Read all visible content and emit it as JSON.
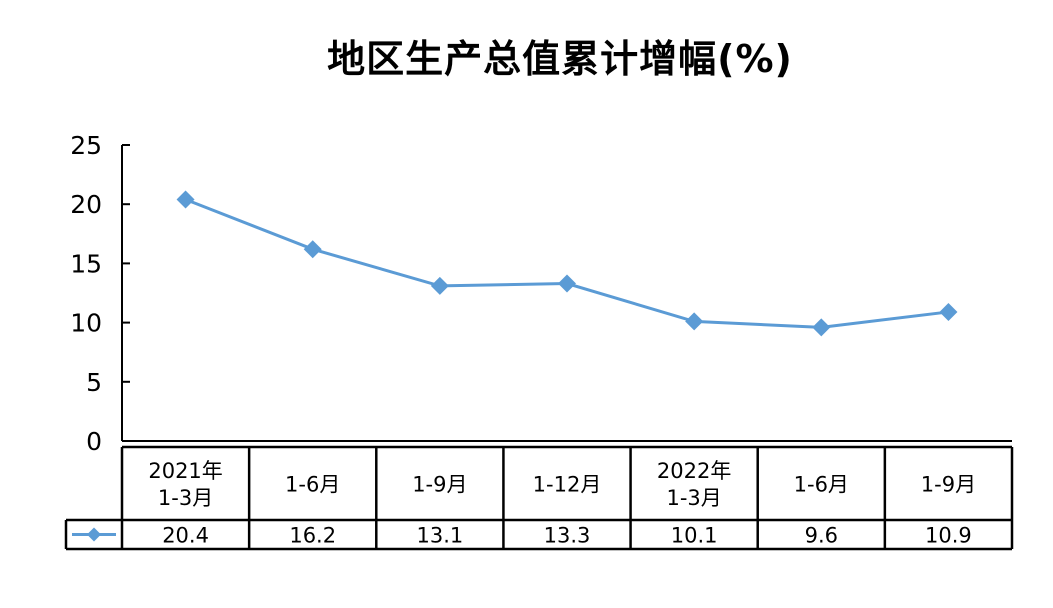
{
  "chart_data": {
    "type": "line",
    "title": "地区生产总值累计增幅(%)",
    "categories": [
      [
        "2021年",
        "1-3月"
      ],
      [
        "1-6月"
      ],
      [
        "1-9月"
      ],
      [
        "1-12月"
      ],
      [
        "2022年",
        "1-3月"
      ],
      [
        "1-6月"
      ],
      [
        "1-9月"
      ]
    ],
    "series": [
      {
        "values": [
          20.4,
          16.2,
          13.1,
          13.3,
          10.1,
          9.6,
          10.9
        ],
        "color": "#5B9BD5",
        "marker": "diamond"
      }
    ],
    "value_labels": [
      "20.4",
      "16.2",
      "13.1",
      "13.3",
      "10.1",
      "9.6",
      "10.9"
    ],
    "ylim": [
      0,
      25
    ],
    "yticks": [
      0,
      5,
      10,
      15,
      20,
      25
    ],
    "xlabel": "",
    "ylabel": "",
    "grid": false,
    "data_table": true
  }
}
